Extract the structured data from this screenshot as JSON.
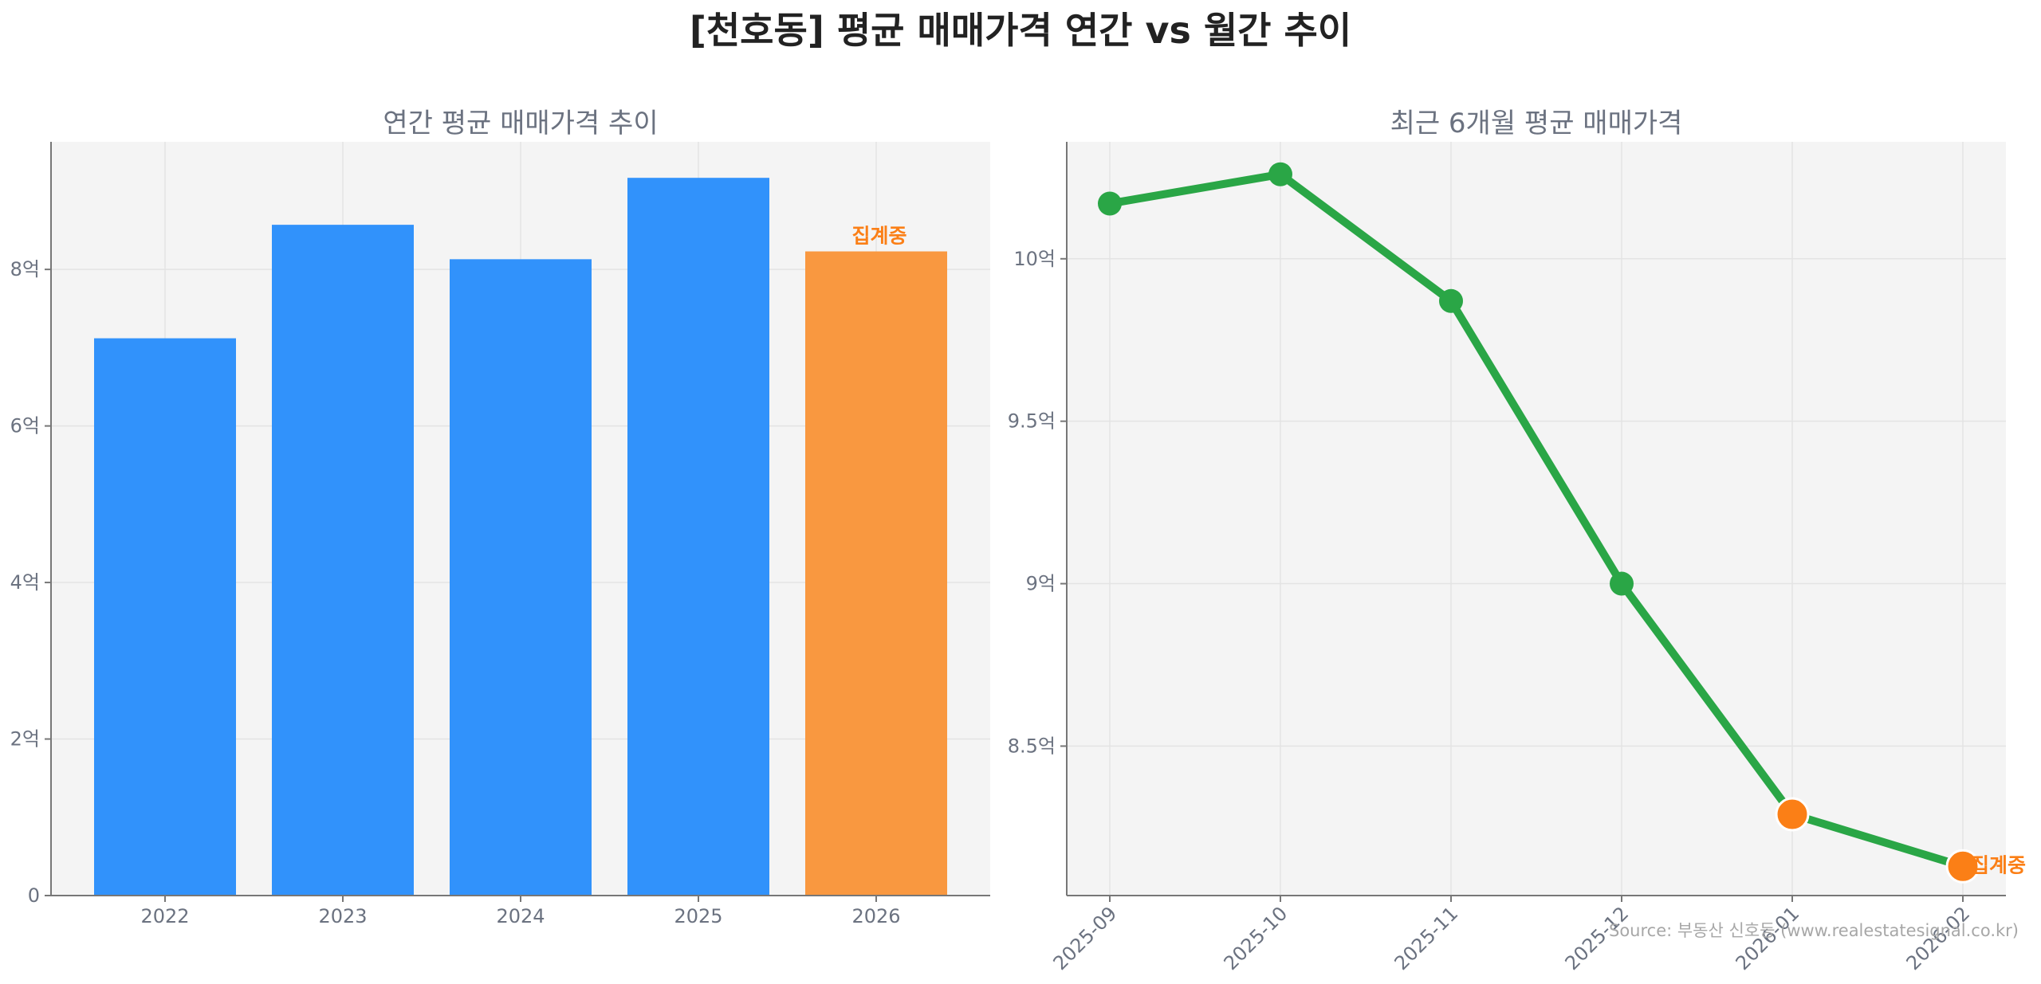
{
  "title": "[천호동] 평균 매매가격 연간 vs 월간 추이",
  "source": "Source: 부동산 신호등 (www.realestatesignal.co.kr)",
  "colors": {
    "bar": "#3192fb",
    "bar_highlight": "#f99840",
    "line": "#2aa646",
    "point_highlight": "#fb7f16",
    "annotation": "#fb7f16",
    "panel_bg": "#f4f4f4"
  },
  "chart_data": [
    {
      "type": "bar",
      "title": "연간 평균 매매가격 추이",
      "categories": [
        "2022",
        "2023",
        "2024",
        "2025",
        "2026"
      ],
      "values": [
        7.12,
        8.57,
        8.13,
        9.17,
        8.23
      ],
      "unit": "억",
      "highlight_index": 4,
      "annotation": "집계중",
      "yticks": [
        0,
        2,
        4,
        6,
        8
      ],
      "ytick_labels": [
        "0",
        "2억",
        "4억",
        "6억",
        "8억"
      ],
      "ylim": [
        0,
        9.63
      ],
      "grid": true
    },
    {
      "type": "line",
      "title": "최근 6개월 평균 매매가격",
      "categories": [
        "2025-09",
        "2025-10",
        "2025-11",
        "2025-12",
        "2026-01",
        "2026-02"
      ],
      "values": [
        10.17,
        10.26,
        9.87,
        9.0,
        8.29,
        8.13
      ],
      "unit": "억",
      "highlight_indices": [
        4,
        5
      ],
      "annotation": "집계중",
      "yticks": [
        8.5,
        9.0,
        9.5,
        10.0
      ],
      "ytick_labels": [
        "8.5억",
        "9억",
        "9.5억",
        "10억"
      ],
      "ylim": [
        8.04,
        10.36
      ],
      "grid": true
    }
  ]
}
